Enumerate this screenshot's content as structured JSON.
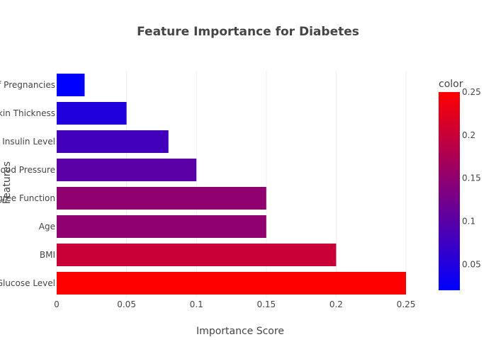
{
  "chart_data": {
    "type": "bar",
    "orientation": "horizontal",
    "title": "Feature Importance for Diabetes",
    "xlabel": "Importance Score",
    "ylabel": "Features",
    "xlim": [
      0,
      0.25
    ],
    "x_ticks": [
      "0",
      "0.05",
      "0.1",
      "0.15",
      "0.2",
      "0.25"
    ],
    "grid": true,
    "categories": [
      "Glucose Level",
      "BMI",
      "Age",
      "Diabetes Pedigree Function",
      "Blood Pressure",
      "Insulin Level",
      "Skin Thickness",
      "Number of Pregnancies"
    ],
    "values": [
      0.25,
      0.2,
      0.15,
      0.15,
      0.1,
      0.08,
      0.05,
      0.02
    ],
    "colorbar": {
      "title": "color",
      "range": [
        0.02,
        0.25
      ],
      "ticks": [
        "0.05",
        "0.1",
        "0.15",
        "0.2",
        "0.25"
      ],
      "colors": [
        "#0000ff",
        "#ff0000"
      ]
    }
  }
}
